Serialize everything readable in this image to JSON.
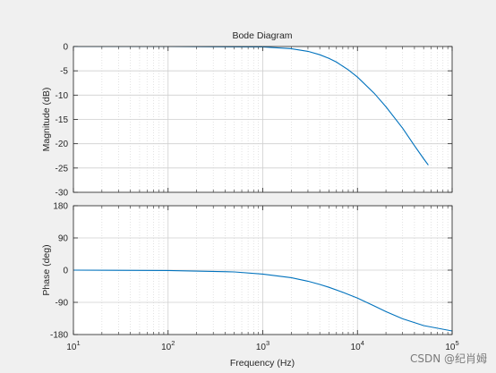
{
  "chart_data": {
    "type": "line",
    "title": "Bode Diagram",
    "xlabel": "Frequency  (Hz)",
    "x_scale": "log",
    "xlim": [
      10,
      100000
    ],
    "x_ticks": [
      "10^1",
      "10^2",
      "10^3",
      "10^4",
      "10^5"
    ],
    "grid": true,
    "line_color": "#0072bd",
    "panels": [
      {
        "name": "magnitude",
        "ylabel": "Magnitude (dB)",
        "ylim": [
          -30,
          0
        ],
        "y_ticks": [
          0,
          -5,
          -10,
          -15,
          -20,
          -25,
          -30
        ],
        "series": [
          {
            "x": [
              10,
              100,
              1000,
              2000,
              3000,
              4000,
              5000,
              6000,
              8000,
              10000,
              15000,
              20000,
              30000,
              40000,
              50000,
              56000
            ],
            "y": [
              0,
              0,
              -0.1,
              -0.45,
              -1.0,
              -1.7,
              -2.45,
              -3.2,
              -4.8,
              -6.3,
              -9.6,
              -12.4,
              -16.8,
              -20.4,
              -23.1,
              -24.4
            ]
          }
        ]
      },
      {
        "name": "phase",
        "ylabel": "Phase (deg)",
        "ylim": [
          -180,
          180
        ],
        "y_ticks": [
          180,
          90,
          0,
          -90,
          -180
        ],
        "series": [
          {
            "x": [
              10,
              100,
              500,
              1000,
              2000,
              3000,
              4000,
              5000,
              7000,
              10000,
              15000,
              20000,
              30000,
              50000,
              100000
            ],
            "y": [
              0,
              -1,
              -5,
              -11,
              -21,
              -31,
              -40,
              -48,
              -62,
              -78,
              -100,
              -116,
              -136,
              -155,
              -170
            ]
          }
        ]
      }
    ]
  },
  "watermark": "CSDN @纪肖姆"
}
